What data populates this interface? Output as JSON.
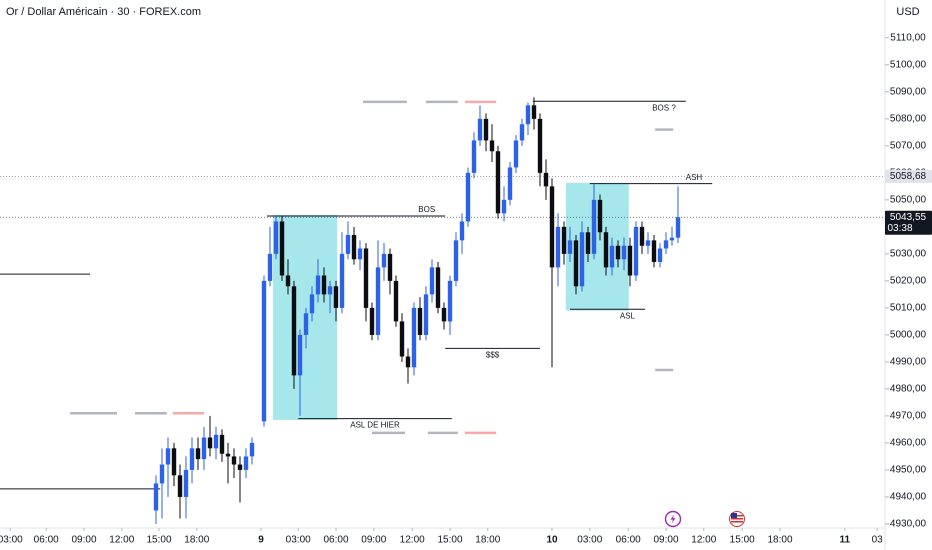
{
  "chart_data": {
    "type": "candlestick",
    "title": "Or / Dollar Américain · 30 · FOREX.com",
    "currency": "USD",
    "up_color": "#2e62e6",
    "down_color": "#0c0d10",
    "xlim": [
      0,
      147.5
    ],
    "ylim": [
      4928.5,
      5124
    ],
    "xticks": [
      {
        "value": 1.7,
        "label": "03:00"
      },
      {
        "value": 7.7,
        "label": "06:00"
      },
      {
        "value": 14,
        "label": "09:00"
      },
      {
        "value": 20.3,
        "label": "12:00"
      },
      {
        "value": 26.5,
        "label": "15:00"
      },
      {
        "value": 32.8,
        "label": "18:00"
      },
      {
        "value": 43.5,
        "label": "9"
      },
      {
        "value": 49.7,
        "label": "03:00"
      },
      {
        "value": 56,
        "label": "06:00"
      },
      {
        "value": 62.3,
        "label": "09:00"
      },
      {
        "value": 68.7,
        "label": "12:00"
      },
      {
        "value": 75,
        "label": "15:00"
      },
      {
        "value": 81.3,
        "label": "18:00"
      },
      {
        "value": 92,
        "label": "10"
      },
      {
        "value": 98.3,
        "label": "03:00"
      },
      {
        "value": 104.7,
        "label": "06:00"
      },
      {
        "value": 111,
        "label": "09:00"
      },
      {
        "value": 117.3,
        "label": "12:00"
      },
      {
        "value": 123.7,
        "label": "15:00"
      },
      {
        "value": 130,
        "label": "18:00"
      },
      {
        "value": 140.8,
        "label": "11"
      },
      {
        "value": 146.2,
        "label": "03"
      }
    ],
    "yticks": [
      {
        "value": 4930,
        "label": "4930,00"
      },
      {
        "value": 4940,
        "label": "4940,00"
      },
      {
        "value": 4950,
        "label": "4950,00"
      },
      {
        "value": 4960,
        "label": "4960,00"
      },
      {
        "value": 4970,
        "label": "4970,00"
      },
      {
        "value": 4980,
        "label": "4980,00"
      },
      {
        "value": 4990,
        "label": "4990,00"
      },
      {
        "value": 5000,
        "label": "5000,00"
      },
      {
        "value": 5010,
        "label": "5010,00"
      },
      {
        "value": 5020,
        "label": "5020,00"
      },
      {
        "value": 5030,
        "label": "5030,00"
      },
      {
        "value": 5040,
        "label": "5040,00"
      },
      {
        "value": 5050,
        "label": "5050,00"
      },
      {
        "value": 5060,
        "label": "5060,00"
      },
      {
        "value": 5070,
        "label": "5070,00"
      },
      {
        "value": 5080,
        "label": "5080,00"
      },
      {
        "value": 5090,
        "label": "5090,00"
      },
      {
        "value": 5100,
        "label": "5100,00"
      },
      {
        "value": 5110,
        "label": "5110,00"
      }
    ],
    "candles": {
      "x": [
        26,
        27,
        28,
        29,
        30,
        31,
        32,
        33,
        34,
        35,
        36,
        37,
        38,
        39,
        40,
        41,
        42,
        44,
        45,
        46,
        47,
        48,
        49,
        50,
        51,
        52,
        53,
        54,
        55,
        56,
        57,
        58,
        59,
        60,
        61,
        62,
        63,
        64,
        65,
        66,
        67,
        68,
        69,
        70,
        71,
        72,
        73,
        74,
        75,
        76,
        77,
        78,
        79,
        80,
        81,
        82,
        83,
        84,
        85,
        86,
        87,
        88,
        89,
        90,
        91,
        92,
        93,
        94,
        95,
        96,
        97,
        98,
        99,
        100,
        101,
        102,
        103,
        104,
        105,
        106,
        107,
        108,
        109,
        110,
        111,
        112,
        113
      ],
      "open": [
        4935,
        4945,
        4952,
        4958,
        4948,
        4940,
        4950,
        4958,
        4954,
        4962,
        4958,
        4963,
        4956,
        4955,
        4952,
        4950,
        4955,
        4968,
        5020,
        5030,
        5042,
        5022,
        5018,
        4985,
        5000,
        5008,
        5015,
        5022,
        5015,
        5018,
        5010,
        5030,
        5037,
        5028,
        5032,
        5010,
        5000,
        5025,
        5030,
        5020,
        5005,
        4992,
        4988,
        5010,
        5000,
        5015,
        5025,
        5010,
        5005,
        5020,
        5035,
        5042,
        5060,
        5072,
        5080,
        5072,
        5068,
        5045,
        5050,
        5062,
        5072,
        5078,
        5085,
        5080,
        5060,
        5055,
        5025,
        5040,
        5030,
        5035,
        5018,
        5038,
        5030,
        5050,
        5038,
        5025,
        5033,
        5028,
        5033,
        5022,
        5040,
        5033,
        5035,
        5027,
        5032,
        5035,
        5036
      ],
      "high": [
        4948,
        4958,
        4962,
        4960,
        4952,
        4955,
        4962,
        4962,
        4966,
        4970,
        4966,
        4965,
        4960,
        4958,
        4955,
        4958,
        4962,
        5022,
        5040,
        5044,
        5044,
        5028,
        5020,
        5002,
        5010,
        5018,
        5028,
        5025,
        5020,
        5020,
        5038,
        5042,
        5040,
        5035,
        5034,
        5012,
        5035,
        5034,
        5032,
        5022,
        5008,
        4995,
        5012,
        5014,
        5018,
        5028,
        5027,
        5012,
        5022,
        5038,
        5045,
        5062,
        5075,
        5085,
        5082,
        5078,
        5070,
        5055,
        5064,
        5074,
        5080,
        5086,
        5088,
        5082,
        5065,
        5058,
        5045,
        5042,
        5040,
        5037,
        5042,
        5040,
        5056,
        5052,
        5040,
        5036,
        5035,
        5036,
        5036,
        5042,
        5042,
        5038,
        5037,
        5034,
        5038,
        5040,
        5055
      ],
      "low": [
        4930,
        4932,
        4940,
        4944,
        4932,
        4932,
        4945,
        4950,
        4950,
        4955,
        4954,
        4953,
        4945,
        4947,
        4938,
        4947,
        4952,
        4966,
        5018,
        5028,
        5020,
        5015,
        4980,
        4970,
        4995,
        5005,
        5012,
        5012,
        5008,
        5005,
        5008,
        5028,
        5026,
        5024,
        5005,
        4998,
        4998,
        5020,
        5015,
        5003,
        4990,
        4982,
        4985,
        4998,
        4998,
        5012,
        5008,
        5002,
        5000,
        5018,
        5030,
        5040,
        5058,
        5070,
        5068,
        5064,
        5043,
        5042,
        5048,
        5060,
        5070,
        5074,
        5076,
        5055,
        5050,
        4988,
        5018,
        5026,
        5027,
        5015,
        5016,
        5027,
        5028,
        5035,
        5022,
        5022,
        5025,
        5024,
        5018,
        5020,
        5030,
        5030,
        5025,
        5025,
        5030,
        5033,
        5034
      ],
      "close": [
        4945,
        4952,
        4958,
        4948,
        4940,
        4950,
        4958,
        4954,
        4962,
        4958,
        4963,
        4956,
        4955,
        4952,
        4950,
        4955,
        4960,
        5020,
        5030,
        5042,
        5022,
        5018,
        4985,
        5000,
        5008,
        5015,
        5022,
        5015,
        5018,
        5010,
        5030,
        5037,
        5028,
        5032,
        5010,
        5000,
        5025,
        5030,
        5020,
        5005,
        4992,
        4988,
        5010,
        5000,
        5015,
        5025,
        5010,
        5005,
        5020,
        5035,
        5042,
        5060,
        5072,
        5080,
        5072,
        5068,
        5045,
        5050,
        5062,
        5072,
        5078,
        5085,
        5080,
        5060,
        5055,
        5025,
        5040,
        5030,
        5035,
        5018,
        5038,
        5030,
        5050,
        5038,
        5025,
        5033,
        5028,
        5033,
        5022,
        5040,
        5033,
        5035,
        5027,
        5032,
        5035,
        5036,
        5043.55
      ]
    },
    "zones": [
      {
        "x": [
          45.5,
          56.2
        ],
        "price": [
          5044.4,
          4968.5
        ],
        "color": "#80dde4"
      },
      {
        "x": [
          94.3,
          104.8
        ],
        "price": [
          5056.3,
          5009
        ],
        "color": "#80dde4"
      }
    ],
    "levels": [
      {
        "label": "BOS",
        "price": 5044,
        "x": [
          44.5,
          74.2
        ],
        "label_pos": "above"
      },
      {
        "label": "BOS ?",
        "price": 5086.5,
        "x": [
          88.8,
          114.3
        ],
        "label_pos": "below"
      },
      {
        "label": "ASH",
        "price": 5056,
        "x": [
          98.3,
          118.7
        ],
        "label_pos": "above"
      },
      {
        "label": "ASL",
        "price": 5009.5,
        "x": [
          95,
          107.5
        ],
        "label_pos": "below"
      },
      {
        "label": "$$$",
        "price": 4995,
        "x": [
          74.2,
          90
        ],
        "label_pos": "below"
      },
      {
        "label": "ASL DE HIER",
        "price": 4969,
        "x": [
          49.7,
          75.3
        ],
        "label_pos": "below"
      },
      {
        "price": 5022.5,
        "x": [
          0,
          15
        ]
      },
      {
        "price": 4943,
        "x": [
          0,
          26.7
        ]
      }
    ],
    "markers": [
      {
        "price": 5086.3,
        "x": [
          60.5,
          67.8
        ],
        "color": "#b2b5be"
      },
      {
        "price": 5086.3,
        "x": [
          71,
          76.3
        ],
        "color": "#b2b5be"
      },
      {
        "price": 5086.3,
        "x": [
          77.5,
          82.7
        ],
        "color": "#f7a9a8"
      },
      {
        "price": 4971,
        "x": [
          11.7,
          19.5
        ],
        "color": "#b2b5be"
      },
      {
        "price": 4971,
        "x": [
          22.5,
          27.8
        ],
        "color": "#b2b5be"
      },
      {
        "price": 4971,
        "x": [
          28.8,
          34
        ],
        "color": "#f7a9a8"
      },
      {
        "price": 4963.7,
        "x": [
          62,
          67.5
        ],
        "color": "#b2b5be"
      },
      {
        "price": 4963.7,
        "x": [
          71.3,
          76.3
        ],
        "color": "#b2b5be"
      },
      {
        "price": 4963.7,
        "x": [
          77.5,
          82.7
        ],
        "color": "#f7a9a8"
      },
      {
        "price": 5076,
        "x": [
          109.2,
          112.2
        ],
        "color": "#b2b5be"
      },
      {
        "price": 4987,
        "x": [
          109.2,
          112.2
        ],
        "color": "#b2b5be"
      }
    ],
    "price_lines": [
      {
        "value": 5058.68,
        "label": "5058,68",
        "style": "light"
      },
      {
        "value": 5043.55,
        "label": "5043,55",
        "style": "dark",
        "countdown": "03:38"
      }
    ]
  }
}
